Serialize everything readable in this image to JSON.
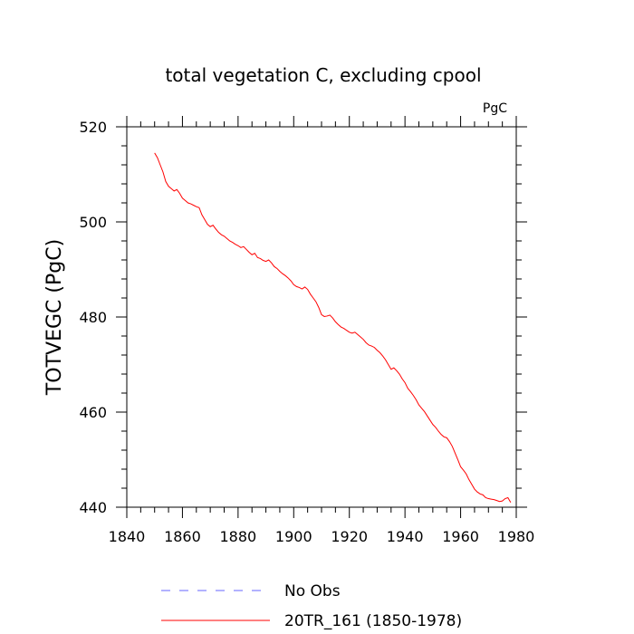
{
  "chart_data": {
    "type": "line",
    "title": "total vegetation C, excluding cpool",
    "units_label": "PgC",
    "ylabel": "TOTVEGC  (PgC)",
    "xlabel": "",
    "xlim": [
      1840,
      1980
    ],
    "ylim": [
      440,
      520
    ],
    "x_ticks": [
      1840,
      1860,
      1880,
      1900,
      1920,
      1940,
      1960,
      1980
    ],
    "y_ticks": [
      440,
      460,
      480,
      500,
      520
    ],
    "grid": false,
    "legend_position": "bottom",
    "legend": [
      {
        "label": "No Obs",
        "color": "#6666ff",
        "style": "dashed"
      },
      {
        "label": "20TR_161 (1850-1978)",
        "color": "#ff0000",
        "style": "solid"
      }
    ],
    "series": [
      {
        "name": "20TR_161 (1850-1978)",
        "color": "#ff0000",
        "x": [
          1850,
          1851,
          1852,
          1853,
          1854,
          1855,
          1856,
          1857,
          1858,
          1859,
          1860,
          1861,
          1862,
          1863,
          1864,
          1865,
          1866,
          1867,
          1868,
          1869,
          1870,
          1871,
          1872,
          1873,
          1874,
          1875,
          1876,
          1877,
          1878,
          1879,
          1880,
          1881,
          1882,
          1883,
          1884,
          1885,
          1886,
          1887,
          1888,
          1889,
          1890,
          1891,
          1892,
          1893,
          1894,
          1895,
          1896,
          1897,
          1898,
          1899,
          1900,
          1901,
          1902,
          1903,
          1904,
          1905,
          1906,
          1907,
          1908,
          1909,
          1910,
          1911,
          1912,
          1913,
          1914,
          1915,
          1916,
          1917,
          1918,
          1919,
          1920,
          1921,
          1922,
          1923,
          1924,
          1925,
          1926,
          1927,
          1928,
          1929,
          1930,
          1931,
          1932,
          1933,
          1934,
          1935,
          1936,
          1937,
          1938,
          1939,
          1940,
          1941,
          1942,
          1943,
          1944,
          1945,
          1946,
          1947,
          1948,
          1949,
          1950,
          1951,
          1952,
          1953,
          1954,
          1955,
          1956,
          1957,
          1958,
          1959,
          1960,
          1961,
          1962,
          1963,
          1964,
          1965,
          1966,
          1967,
          1968,
          1969,
          1970,
          1971,
          1972,
          1973,
          1974,
          1975,
          1976,
          1977,
          1978
        ],
        "values": [
          514.5,
          513.5,
          512.0,
          510.5,
          508.5,
          507.5,
          507.0,
          506.5,
          506.8,
          506.0,
          505.0,
          504.5,
          504.0,
          503.8,
          503.5,
          503.2,
          503.0,
          501.5,
          500.5,
          499.5,
          499.0,
          499.3,
          498.5,
          497.8,
          497.3,
          497.0,
          496.5,
          496.0,
          495.7,
          495.3,
          495.0,
          494.6,
          494.8,
          494.2,
          493.6,
          493.1,
          493.4,
          492.5,
          492.3,
          491.9,
          491.7,
          492.0,
          491.4,
          490.6,
          490.2,
          489.6,
          489.1,
          488.7,
          488.2,
          487.6,
          486.8,
          486.4,
          486.2,
          485.9,
          486.3,
          485.8,
          484.8,
          484.0,
          483.2,
          482.0,
          480.5,
          480.1,
          480.2,
          480.4,
          479.8,
          479.0,
          478.4,
          477.9,
          477.6,
          477.2,
          476.8,
          476.6,
          476.8,
          476.3,
          475.8,
          475.3,
          474.6,
          474.1,
          473.9,
          473.6,
          473.0,
          472.5,
          471.8,
          471.0,
          470.0,
          469.0,
          469.3,
          468.7,
          468.0,
          467.0,
          466.2,
          465.0,
          464.3,
          463.5,
          462.6,
          461.5,
          460.8,
          460.1,
          459.2,
          458.3,
          457.4,
          456.8,
          456.0,
          455.3,
          454.8,
          454.6,
          453.8,
          452.8,
          451.4,
          450.0,
          448.5,
          447.8,
          447.0,
          445.8,
          444.8,
          443.8,
          443.2,
          442.8,
          442.6,
          442.0,
          441.8,
          441.7,
          441.6,
          441.4,
          441.2,
          441.3,
          441.8,
          442.0,
          441.0
        ]
      }
    ]
  }
}
